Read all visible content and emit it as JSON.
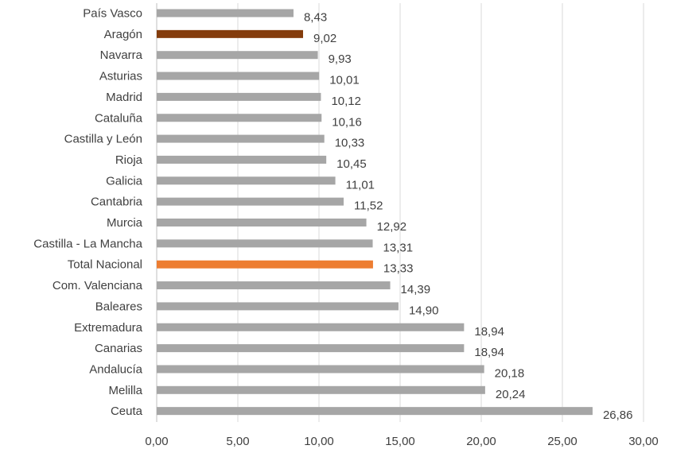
{
  "chart_data": {
    "type": "bar",
    "orientation": "horizontal",
    "title": "",
    "xlabel": "",
    "ylabel": "",
    "xlim": [
      0,
      30
    ],
    "xticks": [
      0,
      5,
      10,
      15,
      20,
      25,
      30
    ],
    "xtick_labels": [
      "0,00",
      "5,00",
      "10,00",
      "15,00",
      "20,00",
      "25,00",
      "30,00"
    ],
    "grid": "vertical",
    "legend": "none",
    "categories": [
      "País Vasco",
      "Aragón",
      "Navarra",
      "Asturias",
      "Madrid",
      "Cataluña",
      "Castilla y León",
      "Rioja",
      "Galicia",
      "Cantabria",
      "Murcia",
      "Castilla - La Mancha",
      "Total Nacional",
      "Com. Valenciana",
      "Baleares",
      "Extremadura",
      "Canarias",
      "Andalucía",
      "Melilla",
      "Ceuta"
    ],
    "values": [
      8.43,
      9.02,
      9.93,
      10.01,
      10.12,
      10.16,
      10.33,
      10.45,
      11.01,
      11.52,
      12.92,
      13.31,
      13.33,
      14.39,
      14.9,
      18.94,
      18.94,
      20.18,
      20.24,
      26.86
    ],
    "value_labels": [
      "8,43",
      "9,02",
      "9,93",
      "10,01",
      "10,12",
      "10,16",
      "10,33",
      "10,45",
      "11,01",
      "11,52",
      "12,92",
      "13,31",
      "13,33",
      "14,39",
      "14,90",
      "18,94",
      "18,94",
      "20,18",
      "20,24",
      "26,86"
    ],
    "colors": {
      "default": "#a6a6a6",
      "highlights": {
        "Aragón": "#843c0c",
        "Total Nacional": "#ed7d31"
      }
    }
  }
}
